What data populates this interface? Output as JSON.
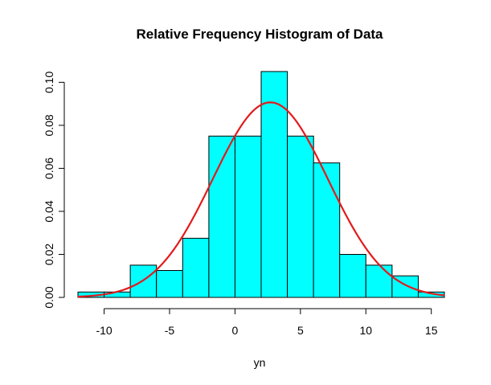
{
  "chart_data": {
    "type": "bar",
    "title": "Relative Frequency Histogram of Data",
    "xlabel": "yn",
    "ylabel": "",
    "xlim": [
      -12,
      16
    ],
    "ylim": [
      0,
      0.105
    ],
    "bin_width": 2,
    "bins": [
      {
        "x0": -12,
        "x1": -10,
        "value": 0.0025
      },
      {
        "x0": -10,
        "x1": -8,
        "value": 0.0025
      },
      {
        "x0": -8,
        "x1": -6,
        "value": 0.015
      },
      {
        "x0": -6,
        "x1": -4,
        "value": 0.0125
      },
      {
        "x0": -4,
        "x1": -2,
        "value": 0.0275
      },
      {
        "x0": -2,
        "x1": 0,
        "value": 0.075
      },
      {
        "x0": 0,
        "x1": 2,
        "value": 0.075
      },
      {
        "x0": 2,
        "x1": 4,
        "value": 0.105
      },
      {
        "x0": 4,
        "x1": 6,
        "value": 0.075
      },
      {
        "x0": 6,
        "x1": 8,
        "value": 0.0625
      },
      {
        "x0": 8,
        "x1": 10,
        "value": 0.02
      },
      {
        "x0": 10,
        "x1": 12,
        "value": 0.015
      },
      {
        "x0": 12,
        "x1": 14,
        "value": 0.01
      },
      {
        "x0": 14,
        "x1": 16,
        "value": 0.0025
      }
    ],
    "x_ticks": [
      -10,
      -5,
      0,
      5,
      10,
      15
    ],
    "x_tick_labels": [
      "-10",
      "-5",
      "0",
      "5",
      "10",
      "15"
    ],
    "y_ticks": [
      0,
      0.02,
      0.04,
      0.06,
      0.08,
      0.1
    ],
    "y_tick_labels": [
      "0.00",
      "0.02",
      "0.04",
      "0.06",
      "0.08",
      "0.10"
    ],
    "density_curve": {
      "type": "normal",
      "mean": 2.7,
      "sd": 4.4
    },
    "grid": false,
    "colors": {
      "bar_fill": "#00ffff",
      "bar_stroke": "#000000",
      "curve": "#e31a1c"
    }
  }
}
